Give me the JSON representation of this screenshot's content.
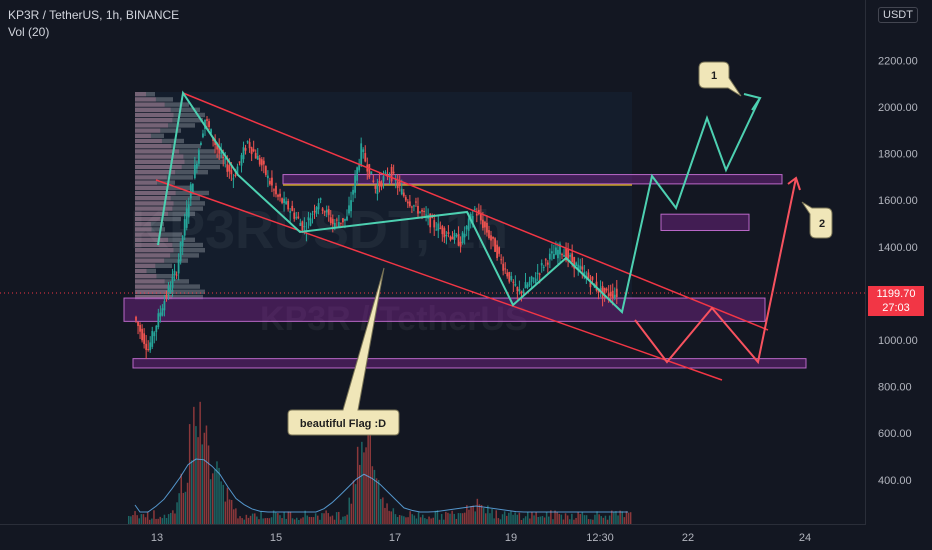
{
  "header": {
    "symbol_line": "KP3R / TetherUS, 1h, BINANCE",
    "indicator_line": "Vol (20)"
  },
  "price_scale": {
    "currency_badge": "USDT",
    "current_price": "1199.70",
    "countdown": "27:03"
  },
  "watermark": {
    "top": "KP3RUSDT, 1h",
    "bottom": "KP3R / TetherUS"
  },
  "annotations": {
    "flag_label": "beautiful Flag :D",
    "target_1": "1",
    "target_2": "2"
  },
  "colors": {
    "background": "#131722",
    "up": "#26a69a",
    "down": "#ef5350",
    "channel": "#f23645",
    "zone_fill": "#9c27b0",
    "zone_border": "#ba68c8",
    "path_bull": "#4dd0b1",
    "path_bear": "#f7525f",
    "callout": "#f0e6b8"
  },
  "chart_data": {
    "type": "candlestick",
    "x_ticks": [
      "13",
      "15",
      "17",
      "19",
      "12:30",
      "22",
      "24"
    ],
    "y_ticks": [
      2200,
      2000,
      1800,
      1600,
      1400,
      1200,
      1000,
      800,
      600,
      400
    ],
    "ylim": [
      200,
      2400
    ],
    "last_price": 1199.7,
    "price_path": [
      [
        0,
        1100
      ],
      [
        1,
        960
      ],
      [
        2,
        1150
      ],
      [
        3,
        1300
      ],
      [
        4,
        1650
      ],
      [
        5,
        1950
      ],
      [
        6,
        1800
      ],
      [
        7,
        1700
      ],
      [
        8,
        1850
      ],
      [
        9,
        1750
      ],
      [
        10,
        1620
      ],
      [
        11,
        1560
      ],
      [
        12,
        1480
      ],
      [
        13,
        1600
      ],
      [
        14,
        1500
      ],
      [
        15,
        1520
      ],
      [
        16,
        1820
      ],
      [
        17,
        1650
      ],
      [
        18,
        1720
      ],
      [
        19,
        1620
      ],
      [
        20,
        1560
      ],
      [
        21,
        1500
      ],
      [
        22,
        1460
      ],
      [
        23,
        1420
      ],
      [
        24,
        1560
      ],
      [
        25,
        1450
      ],
      [
        26,
        1320
      ],
      [
        27,
        1200
      ],
      [
        28,
        1250
      ],
      [
        29,
        1340
      ],
      [
        30,
        1390
      ],
      [
        31,
        1330
      ],
      [
        32,
        1260
      ],
      [
        33,
        1200
      ],
      [
        34,
        1199.7
      ]
    ],
    "volume_peaks": [
      [
        4,
        900
      ],
      [
        5,
        500
      ],
      [
        6,
        300
      ],
      [
        16,
        800
      ],
      [
        17,
        250
      ],
      [
        24,
        150
      ]
    ],
    "zones": [
      {
        "name": "upper-resistance",
        "low": 1670,
        "high": 1710
      },
      {
        "name": "mid-box",
        "low": 1470,
        "high": 1540
      },
      {
        "name": "current-support",
        "low": 1080,
        "high": 1180
      },
      {
        "name": "lower-support",
        "low": 880,
        "high": 920
      }
    ],
    "projection_bull": [
      [
        34,
        1100
      ],
      [
        35,
        1680
      ],
      [
        36,
        1550
      ],
      [
        37,
        1950
      ],
      [
        38,
        1720
      ],
      [
        39,
        2000
      ]
    ],
    "projection_bear": [
      [
        34,
        1180
      ],
      [
        35,
        900
      ],
      [
        36,
        1130
      ],
      [
        37,
        920
      ],
      [
        38,
        1680
      ]
    ]
  }
}
